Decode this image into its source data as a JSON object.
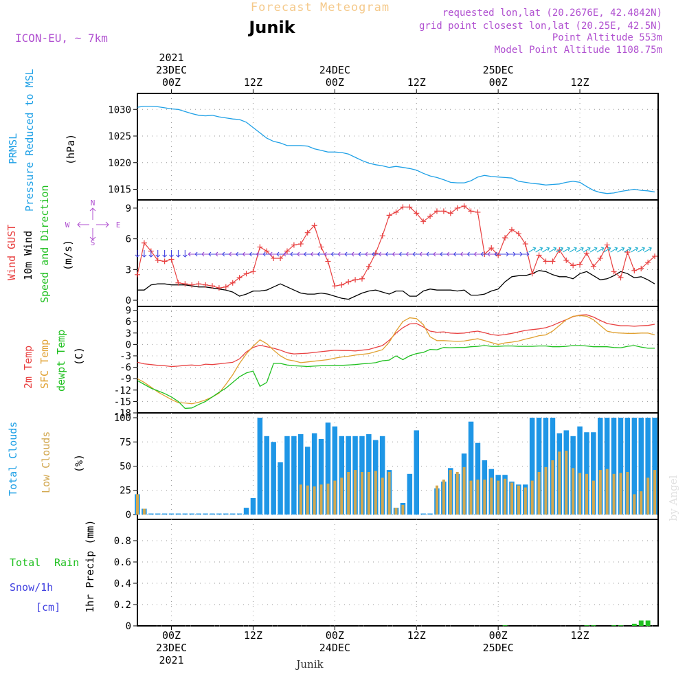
{
  "header": {
    "title": "Forecast Meteogram",
    "station": "Junik",
    "model": "ICON-EU, ~ 7km",
    "requested": "requested lon,lat (20.2676E, 42.4842N)",
    "gridpoint": "grid point closest lon,lat (20.25E, 42.5N)",
    "point_altitude": "Point Altitude 553m",
    "model_altitude": "Model Point Altitude 1108.75m",
    "footer_station": "Junik",
    "credit": "by Angel"
  },
  "time_axis": {
    "top_ticks": [
      {
        "hour": 0,
        "lines": [
          "2021",
          "23DEC",
          "00Z"
        ]
      },
      {
        "hour": 12,
        "lines": [
          "12Z"
        ]
      },
      {
        "hour": 24,
        "lines": [
          "24DEC",
          "00Z"
        ]
      },
      {
        "hour": 36,
        "lines": [
          "12Z"
        ]
      },
      {
        "hour": 48,
        "lines": [
          "25DEC",
          "00Z"
        ]
      },
      {
        "hour": 60,
        "lines": [
          "12Z"
        ]
      }
    ],
    "bottom_ticks": [
      {
        "hour": 0,
        "lines": [
          "00Z",
          "23DEC",
          "2021"
        ]
      },
      {
        "hour": 12,
        "lines": [
          "12Z"
        ]
      },
      {
        "hour": 24,
        "lines": [
          "00Z",
          "24DEC"
        ]
      },
      {
        "hour": 36,
        "lines": [
          "12Z"
        ]
      },
      {
        "hour": 48,
        "lines": [
          "00Z",
          "25DEC"
        ]
      },
      {
        "hour": 60,
        "lines": [
          "12Z"
        ]
      }
    ]
  },
  "colors": {
    "pressure": "#1ea0e6",
    "gust": "#e84040",
    "wind": "#000000",
    "wind_label_green": "#20c020",
    "temp": "#e84040",
    "sfc": "#e0a030",
    "dew": "#20c020",
    "total_cloud": "#1e96e6",
    "low_cloud": "#d2a850",
    "rain": "#20c020",
    "snow": "#4040e0",
    "purple": "#b050d0",
    "title_orange": "#f5c98a"
  },
  "labels": {
    "pressure": [
      "PRMSL",
      "Pressure Reduced to MSL",
      "(hPa)"
    ],
    "wind": [
      "Wind GUST",
      "10m Wind",
      "Speed and Direction",
      "(m/s)"
    ],
    "compass": {
      "n": "N",
      "s": "S",
      "w": "W",
      "e": "E"
    },
    "temp": [
      "2m Temp",
      "SFC Temp",
      "dewpt Temp",
      "(C)"
    ],
    "clouds": [
      "Total Clouds",
      "Low Clouds",
      "(%)"
    ],
    "precip": [
      "Total",
      "Rain",
      "Snow/1h",
      "[cm]",
      "1hr Precip (mm)"
    ]
  },
  "chart_data": [
    {
      "type": "line",
      "name": "pressure",
      "x": [
        -5,
        -4,
        -3,
        -2,
        -1,
        0,
        1,
        2,
        3,
        4,
        5,
        6,
        7,
        8,
        9,
        10,
        11,
        12,
        13,
        14,
        15,
        16,
        17,
        18,
        19,
        20,
        21,
        22,
        23,
        24,
        25,
        26,
        27,
        28,
        29,
        30,
        31,
        32,
        33,
        34,
        35,
        36,
        37,
        38,
        39,
        40,
        41,
        42,
        43,
        44,
        45,
        46,
        47,
        48,
        49,
        50,
        51,
        52,
        53,
        54,
        55,
        56,
        57,
        58,
        59,
        60,
        61,
        62,
        63,
        64,
        65,
        66,
        67,
        68,
        69,
        70,
        71
      ],
      "series": [
        {
          "name": "PRMSL",
          "values": [
            1030.4,
            1030.6,
            1030.6,
            1030.5,
            1030.3,
            1030.1,
            1030.0,
            1029.6,
            1029.2,
            1028.9,
            1028.8,
            1028.9,
            1028.6,
            1028.4,
            1028.2,
            1028.1,
            1027.6,
            1026.6,
            1025.6,
            1024.6,
            1024.0,
            1023.7,
            1023.2,
            1023.2,
            1023.2,
            1023.1,
            1022.6,
            1022.3,
            1022.0,
            1022.0,
            1021.9,
            1021.6,
            1021.0,
            1020.4,
            1019.9,
            1019.6,
            1019.4,
            1019.1,
            1019.3,
            1019.1,
            1018.9,
            1018.6,
            1018.0,
            1017.5,
            1017.2,
            1016.8,
            1016.3,
            1016.2,
            1016.2,
            1016.6,
            1017.3,
            1017.6,
            1017.4,
            1017.3,
            1017.2,
            1017.1,
            1016.5,
            1016.3,
            1016.1,
            1016.0,
            1015.8,
            1015.9,
            1016.0,
            1016.3,
            1016.5,
            1016.3,
            1015.5,
            1014.8,
            1014.4,
            1014.2,
            1014.3,
            1014.6,
            1014.8,
            1015.0,
            1014.8,
            1014.7,
            1014.5
          ]
        }
      ],
      "ylim": [
        1013,
        1033
      ],
      "yticks": [
        1015,
        1020,
        1025,
        1030
      ]
    },
    {
      "type": "line",
      "name": "wind",
      "x": [
        -5,
        -4,
        -3,
        -2,
        -1,
        0,
        1,
        2,
        3,
        4,
        5,
        6,
        7,
        8,
        9,
        10,
        11,
        12,
        13,
        14,
        15,
        16,
        17,
        18,
        19,
        20,
        21,
        22,
        23,
        24,
        25,
        26,
        27,
        28,
        29,
        30,
        31,
        32,
        33,
        34,
        35,
        36,
        37,
        38,
        39,
        40,
        41,
        42,
        43,
        44,
        45,
        46,
        47,
        48,
        49,
        50,
        51,
        52,
        53,
        54,
        55,
        56,
        57,
        58,
        59,
        60,
        61,
        62,
        63,
        64,
        65,
        66,
        67,
        68,
        69,
        70,
        71
      ],
      "series": [
        {
          "name": "Wind GUST",
          "values": [
            2.5,
            5.6,
            4.8,
            3.9,
            3.8,
            4.0,
            1.7,
            1.6,
            1.5,
            1.6,
            1.5,
            1.4,
            1.2,
            1.3,
            1.7,
            2.2,
            2.6,
            2.8,
            5.2,
            4.8,
            4.1,
            4.1,
            4.8,
            5.4,
            5.5,
            6.6,
            7.3,
            5.2,
            3.8,
            1.4,
            1.5,
            1.8,
            2.0,
            2.1,
            3.3,
            4.6,
            6.3,
            8.3,
            8.6,
            9.1,
            9.1,
            8.5,
            7.7,
            8.2,
            8.7,
            8.7,
            8.5,
            9.0,
            9.2,
            8.7,
            8.6,
            4.5,
            5.1,
            4.4,
            6.1,
            6.9,
            6.5,
            5.5,
            2.6,
            4.4,
            3.8,
            3.8,
            4.9,
            3.9,
            3.4,
            3.5,
            4.6,
            3.3,
            4.1,
            5.4,
            2.8,
            2.2,
            4.7,
            2.9,
            3.1,
            3.7,
            4.3
          ]
        },
        {
          "name": "10m Wind",
          "values": [
            1.0,
            1.0,
            1.5,
            1.6,
            1.6,
            1.5,
            1.5,
            1.5,
            1.4,
            1.3,
            1.3,
            1.2,
            1.1,
            1.0,
            0.8,
            0.4,
            0.6,
            0.9,
            0.9,
            1.0,
            1.3,
            1.6,
            1.3,
            1.0,
            0.7,
            0.6,
            0.6,
            0.7,
            0.6,
            0.4,
            0.2,
            0.1,
            0.4,
            0.7,
            0.9,
            1.0,
            0.8,
            0.6,
            0.9,
            0.9,
            0.4,
            0.4,
            0.9,
            1.1,
            1.0,
            1.0,
            1.0,
            0.9,
            1.0,
            0.5,
            0.5,
            0.6,
            0.9,
            1.1,
            1.8,
            2.3,
            2.4,
            2.4,
            2.6,
            2.9,
            2.8,
            2.5,
            2.3,
            2.3,
            2.1,
            2.6,
            2.8,
            2.4,
            2.0,
            2.1,
            2.4,
            2.8,
            2.6,
            2.2,
            2.3,
            2.0,
            1.6
          ]
        }
      ],
      "ylim": [
        -0.6,
        9.8
      ],
      "yticks": [
        0,
        3,
        6,
        9
      ]
    },
    {
      "type": "line",
      "name": "temperature",
      "x": [
        -5,
        -4,
        -3,
        -2,
        -1,
        0,
        1,
        2,
        3,
        4,
        5,
        6,
        7,
        8,
        9,
        10,
        11,
        12,
        13,
        14,
        15,
        16,
        17,
        18,
        19,
        20,
        21,
        22,
        23,
        24,
        25,
        26,
        27,
        28,
        29,
        30,
        31,
        32,
        33,
        34,
        35,
        36,
        37,
        38,
        39,
        40,
        41,
        42,
        43,
        44,
        45,
        46,
        47,
        48,
        49,
        50,
        51,
        52,
        53,
        54,
        55,
        56,
        57,
        58,
        59,
        60,
        61,
        62,
        63,
        64,
        65,
        66,
        67,
        68,
        69,
        70,
        71
      ],
      "series": [
        {
          "name": "2m Temp",
          "values": [
            -4.7,
            -5.1,
            -5.3,
            -5.5,
            -5.6,
            -5.8,
            -5.7,
            -5.5,
            -5.4,
            -5.6,
            -5.2,
            -5.3,
            -5.1,
            -4.9,
            -4.7,
            -3.8,
            -2.0,
            -0.8,
            -0.2,
            -0.6,
            -1.0,
            -1.5,
            -2.2,
            -2.5,
            -2.4,
            -2.3,
            -2.1,
            -1.9,
            -1.7,
            -1.5,
            -1.6,
            -1.6,
            -1.7,
            -1.5,
            -1.3,
            -0.8,
            -0.3,
            1.1,
            3.0,
            4.4,
            5.4,
            5.5,
            4.6,
            3.5,
            3.2,
            3.3,
            3.0,
            2.9,
            3.0,
            3.3,
            3.5,
            3.1,
            2.6,
            2.4,
            2.6,
            2.9,
            3.3,
            3.7,
            3.9,
            4.1,
            4.4,
            5.0,
            5.8,
            6.5,
            7.3,
            7.7,
            7.8,
            7.2,
            6.3,
            5.5,
            5.2,
            4.9,
            4.9,
            4.8,
            4.9,
            5.0,
            5.3
          ]
        },
        {
          "name": "SFC Temp",
          "values": [
            -9.0,
            -10.0,
            -11.2,
            -12.5,
            -13.5,
            -14.5,
            -15.3,
            -15.4,
            -15.6,
            -15.2,
            -14.6,
            -13.8,
            -12.8,
            -10.5,
            -8.0,
            -5.0,
            -2.5,
            -0.5,
            1.2,
            0.2,
            -1.5,
            -3.0,
            -4.0,
            -4.3,
            -4.8,
            -4.6,
            -4.4,
            -4.2,
            -4.0,
            -3.6,
            -3.3,
            -3.1,
            -2.8,
            -2.6,
            -2.4,
            -1.9,
            -1.4,
            0.6,
            3.5,
            6.0,
            7.0,
            6.8,
            5.2,
            2.0,
            1.0,
            1.0,
            0.9,
            0.8,
            0.9,
            1.2,
            1.5,
            1.0,
            0.5,
            0.0,
            0.4,
            0.6,
            0.9,
            1.4,
            1.8,
            2.3,
            2.5,
            3.5,
            5.0,
            6.5,
            7.4,
            7.6,
            7.4,
            6.5,
            5.0,
            3.5,
            3.1,
            3.0,
            2.9,
            2.9,
            3.0,
            3.0,
            2.5
          ]
        },
        {
          "name": "dewpt Temp",
          "values": [
            -9.5,
            -10.5,
            -11.5,
            -12.2,
            -12.9,
            -13.8,
            -15.0,
            -16.8,
            -16.7,
            -15.8,
            -15.0,
            -13.8,
            -12.6,
            -11.5,
            -10.0,
            -8.5,
            -7.5,
            -7.0,
            -11.0,
            -10.0,
            -5.0,
            -5.0,
            -5.4,
            -5.6,
            -5.7,
            -5.8,
            -5.7,
            -5.6,
            -5.6,
            -5.5,
            -5.5,
            -5.4,
            -5.3,
            -5.1,
            -5.0,
            -4.8,
            -4.3,
            -4.1,
            -3.0,
            -4.0,
            -3.0,
            -2.4,
            -2.1,
            -1.3,
            -1.4,
            -0.8,
            -0.9,
            -0.8,
            -0.8,
            -0.6,
            -0.5,
            -0.3,
            -0.5,
            -0.5,
            -0.4,
            -0.4,
            -0.5,
            -0.5,
            -0.5,
            -0.4,
            -0.4,
            -0.6,
            -0.6,
            -0.5,
            -0.3,
            -0.3,
            -0.4,
            -0.6,
            -0.6,
            -0.6,
            -0.8,
            -0.9,
            -0.5,
            -0.3,
            -0.7,
            -1.0,
            -1.0
          ]
        }
      ],
      "ylim": [
        -18,
        10
      ],
      "yticks": [
        9,
        6,
        3,
        0,
        -3,
        -6,
        -9,
        -12,
        -15,
        -18
      ]
    },
    {
      "type": "bar",
      "name": "clouds",
      "x": [
        -5,
        -4,
        -3,
        -2,
        -1,
        0,
        1,
        2,
        3,
        4,
        5,
        6,
        7,
        8,
        9,
        10,
        11,
        12,
        13,
        14,
        15,
        16,
        17,
        18,
        19,
        20,
        21,
        22,
        23,
        24,
        25,
        26,
        27,
        28,
        29,
        30,
        31,
        32,
        33,
        34,
        35,
        36,
        37,
        38,
        39,
        40,
        41,
        42,
        43,
        44,
        45,
        46,
        47,
        48,
        49,
        50,
        51,
        52,
        53,
        54,
        55,
        56,
        57,
        58,
        59,
        60,
        61,
        62,
        63,
        64,
        65,
        66,
        67,
        68,
        69,
        70,
        71
      ],
      "series": [
        {
          "name": "Total Clouds",
          "values": [
            21,
            6,
            1,
            1,
            1,
            1,
            1,
            1,
            1,
            1,
            1,
            1,
            1,
            1,
            1,
            1,
            7,
            17,
            100,
            81,
            75,
            54,
            81,
            81,
            83,
            70,
            84,
            78,
            95,
            91,
            81,
            81,
            81,
            81,
            83,
            77,
            81,
            46,
            7,
            12,
            42,
            87,
            1,
            1,
            27,
            34,
            48,
            42,
            63,
            96,
            74,
            56,
            47,
            41,
            41,
            34,
            31,
            31,
            100,
            100,
            100,
            100,
            84,
            87,
            81,
            91,
            85,
            85,
            100,
            100,
            100,
            100,
            100,
            100,
            100,
            100,
            100
          ]
        },
        {
          "name": "Low Clouds",
          "values": [
            21,
            6,
            0,
            0,
            0,
            0,
            0,
            0,
            0,
            0,
            0,
            0,
            0,
            0,
            0,
            0,
            0,
            0,
            0,
            0,
            0,
            0,
            0,
            0,
            31,
            30,
            29,
            31,
            32,
            35,
            38,
            44,
            46,
            44,
            44,
            45,
            38,
            44,
            7,
            10,
            0,
            0,
            0,
            0,
            30,
            36,
            46,
            44,
            49,
            35,
            36,
            36,
            38,
            35,
            37,
            33,
            30,
            28,
            35,
            44,
            49,
            56,
            65,
            66,
            48,
            43,
            42,
            35,
            46,
            47,
            42,
            43,
            44,
            21,
            24,
            38,
            46
          ]
        }
      ],
      "ylim": [
        -5,
        105
      ],
      "yticks": [
        0,
        25,
        50,
        75,
        100
      ]
    },
    {
      "type": "bar",
      "name": "precipitation",
      "x": [
        49,
        61,
        62,
        65,
        66,
        68,
        69,
        70
      ],
      "series": [
        {
          "name": "Total Rain",
          "values": [
            0.005,
            0.005,
            0.005,
            0.005,
            0.005,
            0.02,
            0.05,
            0.05
          ]
        }
      ],
      "ylim": [
        0,
        1.0
      ],
      "yticks": [
        0,
        0.2,
        0.4,
        0.6,
        0.8
      ]
    }
  ]
}
